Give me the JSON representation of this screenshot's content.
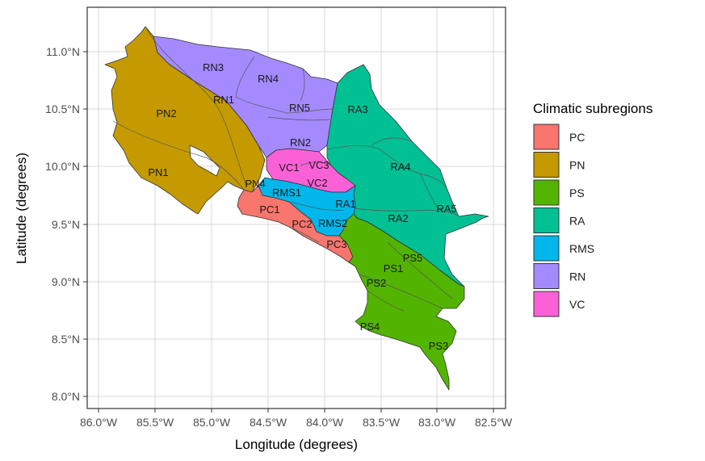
{
  "colors": {
    "PC": "#F8766D",
    "PN": "#C49A00",
    "PS": "#53B400",
    "RA": "#00C094",
    "RMS": "#00B6EB",
    "RN": "#A58AFF",
    "VC": "#FB61D7",
    "grid": "#d9d9d9",
    "border": "#333333"
  },
  "axes": {
    "xlabel": "Longitude (degrees)",
    "ylabel": "Latitude (degrees)",
    "x_ticks": [
      "86.0°W",
      "85.5°W",
      "85.0°W",
      "84.5°W",
      "84.0°W",
      "83.5°W",
      "83.0°W",
      "82.5°W"
    ],
    "y_ticks": [
      "8.0°N",
      "8.5°N",
      "9.0°N",
      "9.5°N",
      "10.0°N",
      "10.5°N",
      "11.0°N"
    ]
  },
  "legend": {
    "title": "Climatic subregions",
    "items": [
      "PC",
      "PN",
      "PS",
      "RA",
      "RMS",
      "RN",
      "VC"
    ]
  },
  "region_labels": [
    "RN3",
    "RN4",
    "RN1",
    "RN5",
    "RN2",
    "PN2",
    "PN1",
    "PN4",
    "RA3",
    "RA4",
    "RA5",
    "RA2",
    "RA1",
    "VC1",
    "VC3",
    "VC2",
    "RMS1",
    "RMS2",
    "PC1",
    "PC2",
    "PC3",
    "PS5",
    "PS1",
    "PS2",
    "PS4",
    "PS3"
  ]
}
